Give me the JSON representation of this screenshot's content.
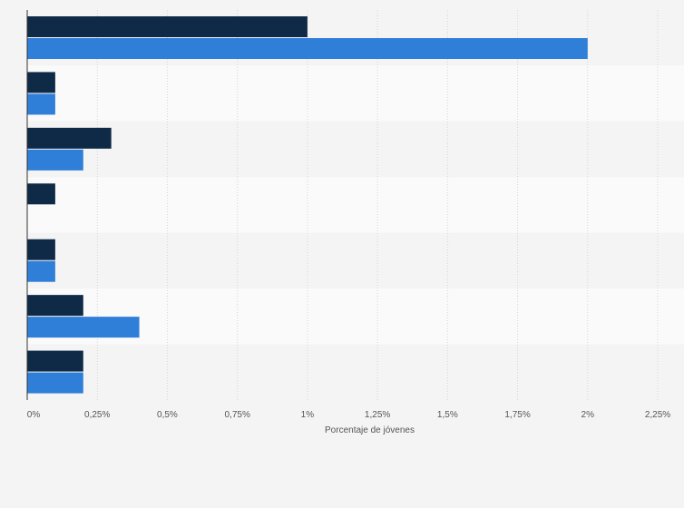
{
  "chart_data": {
    "type": "bar",
    "orientation": "horizontal",
    "categories": [
      "",
      "",
      "",
      "",
      "",
      "",
      ""
    ],
    "series": [
      {
        "color": "#0f2a47",
        "values": [
          1.0,
          0.1,
          0.3,
          0.1,
          0.1,
          0.2,
          0.2
        ]
      },
      {
        "color": "#2f7ed8",
        "values": [
          2.0,
          0.1,
          0.2,
          0.0,
          0.1,
          0.4,
          0.2
        ]
      }
    ],
    "xlim": [
      0,
      2.25
    ],
    "x_ticks": [
      0,
      0.25,
      0.5,
      0.75,
      1.0,
      1.25,
      1.5,
      1.75,
      2.0,
      2.25
    ],
    "x_tick_labels": [
      "0%",
      "0,25%",
      "0,5%",
      "0,75%",
      "1%",
      "1,25%",
      "1,5%",
      "1,75%",
      "2%",
      "2,25%"
    ],
    "xlabel": "Porcentaje de jóvenes",
    "grid": true,
    "legend": "none",
    "band_colors": [
      "#f4f4f4",
      "#fafafa"
    ]
  }
}
